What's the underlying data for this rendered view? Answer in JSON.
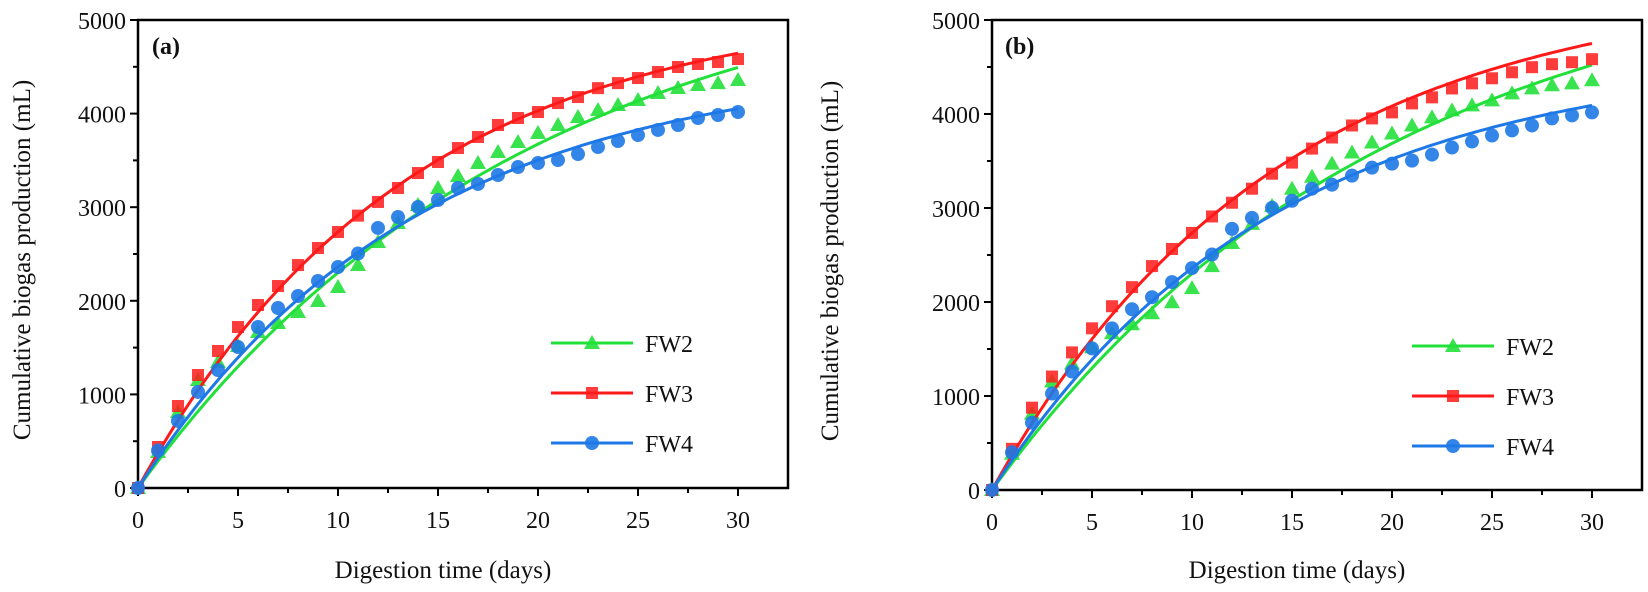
{
  "chart_data": [
    {
      "type": "scatter",
      "panel_label": "(a)",
      "title": "",
      "xlabel": "Digestion time (days)",
      "ylabel": "Cumulative biogas production (mL)",
      "xlim": [
        0,
        32.5
      ],
      "ylim": [
        0,
        5000
      ],
      "xticks": [
        0,
        5,
        10,
        15,
        20,
        25,
        30
      ],
      "yticks": [
        0,
        1000,
        2000,
        3000,
        4000,
        5000
      ],
      "xtick_labels": [
        "0",
        "5",
        "10",
        "15",
        "20",
        "25",
        "30"
      ],
      "ytick_labels": [
        "0",
        "1000",
        "2000",
        "3000",
        "4000",
        "5000"
      ],
      "grid": false,
      "legend_position": "bottom-right",
      "x": [
        0,
        1,
        2,
        3,
        4,
        5,
        6,
        7,
        8,
        9,
        10,
        11,
        12,
        13,
        14,
        15,
        16,
        17,
        18,
        19,
        20,
        21,
        22,
        23,
        24,
        25,
        26,
        27,
        28,
        29,
        30
      ],
      "series": [
        {
          "name": "FW2",
          "color": "#22e03a",
          "marker": "triangle",
          "values": [
            0,
            385,
            812,
            1154,
            1346,
            1517,
            1667,
            1763,
            1880,
            1998,
            2147,
            2382,
            2628,
            2831,
            3023,
            3205,
            3333,
            3472,
            3590,
            3697,
            3793,
            3878,
            3964,
            4038,
            4092,
            4145,
            4220,
            4273,
            4306,
            4326,
            4359
          ],
          "fit": {
            "model": "P*(1-exp(-k*t))",
            "P": 5707,
            "k": 0.0516
          }
        },
        {
          "name": "FW3",
          "color": "#ff1a1a",
          "marker": "square",
          "values": [
            0,
            438,
            876,
            1207,
            1464,
            1720,
            1955,
            2158,
            2382,
            2564,
            2735,
            2910,
            3056,
            3205,
            3365,
            3483,
            3632,
            3750,
            3878,
            3953,
            4017,
            4113,
            4177,
            4272,
            4326,
            4380,
            4444,
            4498,
            4530,
            4551,
            4583
          ],
          "fit": {
            "model": "P*(1-exp(-k*t))",
            "P": 5196,
            "k": 0.0748
          }
        },
        {
          "name": "FW4",
          "color": "#1e78e6",
          "marker": "circle",
          "values": [
            0,
            400,
            716,
            1026,
            1260,
            1506,
            1720,
            1923,
            2051,
            2212,
            2361,
            2505,
            2778,
            2895,
            3002,
            3077,
            3205,
            3248,
            3344,
            3429,
            3472,
            3504,
            3568,
            3643,
            3707,
            3771,
            3825,
            3878,
            3953,
            3985,
            4017
          ],
          "fit": {
            "model": "P*(1-exp(-k*t))",
            "P": 4567,
            "k": 0.0728
          }
        }
      ]
    },
    {
      "type": "scatter",
      "panel_label": "(b)",
      "title": "",
      "xlabel": "Digestion time (days)",
      "ylabel": "Cumulative biogas production (mL)",
      "xlim": [
        0,
        32.5
      ],
      "ylim": [
        0,
        5000
      ],
      "xticks": [
        0,
        5,
        10,
        15,
        20,
        25,
        30
      ],
      "yticks": [
        0,
        1000,
        2000,
        3000,
        4000,
        5000
      ],
      "xtick_labels": [
        "0",
        "5",
        "10",
        "15",
        "20",
        "25",
        "30"
      ],
      "ytick_labels": [
        "0",
        "1000",
        "2000",
        "3000",
        "4000",
        "5000"
      ],
      "grid": false,
      "legend_position": "bottom-right",
      "x": [
        0,
        1,
        2,
        3,
        4,
        5,
        6,
        7,
        8,
        9,
        10,
        11,
        12,
        13,
        14,
        15,
        16,
        17,
        18,
        19,
        20,
        21,
        22,
        23,
        24,
        25,
        26,
        27,
        28,
        29,
        30
      ],
      "series": [
        {
          "name": "FW2",
          "color": "#22e03a",
          "marker": "triangle",
          "values": [
            0,
            385,
            812,
            1154,
            1346,
            1517,
            1667,
            1763,
            1880,
            1998,
            2147,
            2382,
            2628,
            2831,
            3023,
            3205,
            3333,
            3472,
            3590,
            3697,
            3793,
            3878,
            3964,
            4038,
            4092,
            4145,
            4220,
            4273,
            4306,
            4326,
            4359
          ],
          "fit": {
            "model": "P*(1-exp(-k*t))",
            "P": 5779,
            "k": 0.0508
          }
        },
        {
          "name": "FW3",
          "color": "#ff1a1a",
          "marker": "square",
          "values": [
            0,
            438,
            876,
            1207,
            1464,
            1720,
            1955,
            2158,
            2382,
            2564,
            2735,
            2910,
            3056,
            3205,
            3365,
            3483,
            3632,
            3750,
            3878,
            3953,
            4017,
            4113,
            4177,
            4272,
            4326,
            4380,
            4444,
            4498,
            4530,
            4551,
            4583
          ],
          "fit": {
            "model": "P*(1-exp(-k*t))",
            "P": 5400,
            "k": 0.0706
          }
        },
        {
          "name": "FW4",
          "color": "#1e78e6",
          "marker": "circle",
          "values": [
            0,
            400,
            716,
            1026,
            1260,
            1506,
            1720,
            1923,
            2051,
            2212,
            2361,
            2505,
            2778,
            2895,
            3002,
            3077,
            3205,
            3248,
            3344,
            3429,
            3472,
            3504,
            3568,
            3643,
            3707,
            3771,
            3825,
            3878,
            3953,
            3985,
            4017
          ],
          "fit": {
            "model": "P*(1-exp(-k*t))",
            "P": 4643,
            "k": 0.071
          }
        }
      ]
    }
  ]
}
